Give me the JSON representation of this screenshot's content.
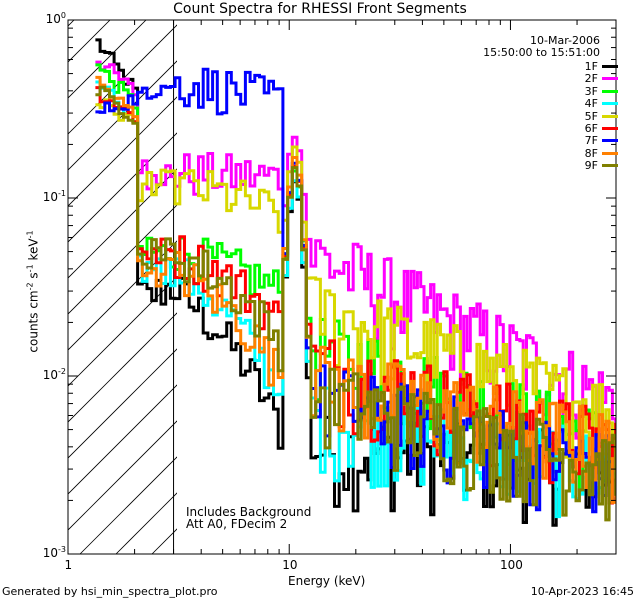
{
  "chart_data": {
    "type": "line",
    "title": "Count Spectra for RHESSI Front Segments",
    "xlabel": "Energy (keV)",
    "ylabel_main": "counts cm",
    "ylabel_exp1": "-2",
    "ylabel_mid": " s",
    "ylabel_exp2": "-1",
    "ylabel_mid2": " keV",
    "ylabel_exp3": "-1",
    "xscale": "log",
    "yscale": "log",
    "xlim": [
      1,
      300
    ],
    "ylim": [
      0.001,
      1
    ],
    "x_ticks": [
      {
        "value": 1,
        "label": "1"
      },
      {
        "value": 10,
        "label": "10"
      },
      {
        "value": 100,
        "label": "100"
      }
    ],
    "y_ticks": [
      {
        "value": 1,
        "base": "10",
        "exp": "0"
      },
      {
        "value": 0.1,
        "base": "10",
        "exp": "-1"
      },
      {
        "value": 0.01,
        "base": "10",
        "exp": "-2"
      },
      {
        "value": 0.001,
        "base": "10",
        "exp": "-3"
      }
    ],
    "hatched_region": [
      1,
      3
    ],
    "date": "10-Mar-2006",
    "time_range": "15:50:00 to 15:51:00",
    "annotations": [
      "Includes Background",
      "Att A0, FDecim 2"
    ],
    "footer_left": "Generated by hsi_min_spectra_plot.pro",
    "footer_right": "10-Apr-2023 16:45",
    "series": [
      {
        "name": "1F",
        "color": "#000000"
      },
      {
        "name": "2F",
        "color": "#ff00ff"
      },
      {
        "name": "3F",
        "color": "#00ff00"
      },
      {
        "name": "4F",
        "color": "#00ffff"
      },
      {
        "name": "5F",
        "color": "#d8d800"
      },
      {
        "name": "6F",
        "color": "#ff0000"
      },
      {
        "name": "7F",
        "color": "#0000ff"
      },
      {
        "name": "8F",
        "color": "#ff8000"
      },
      {
        "name": "9F",
        "color": "#808000"
      }
    ]
  }
}
